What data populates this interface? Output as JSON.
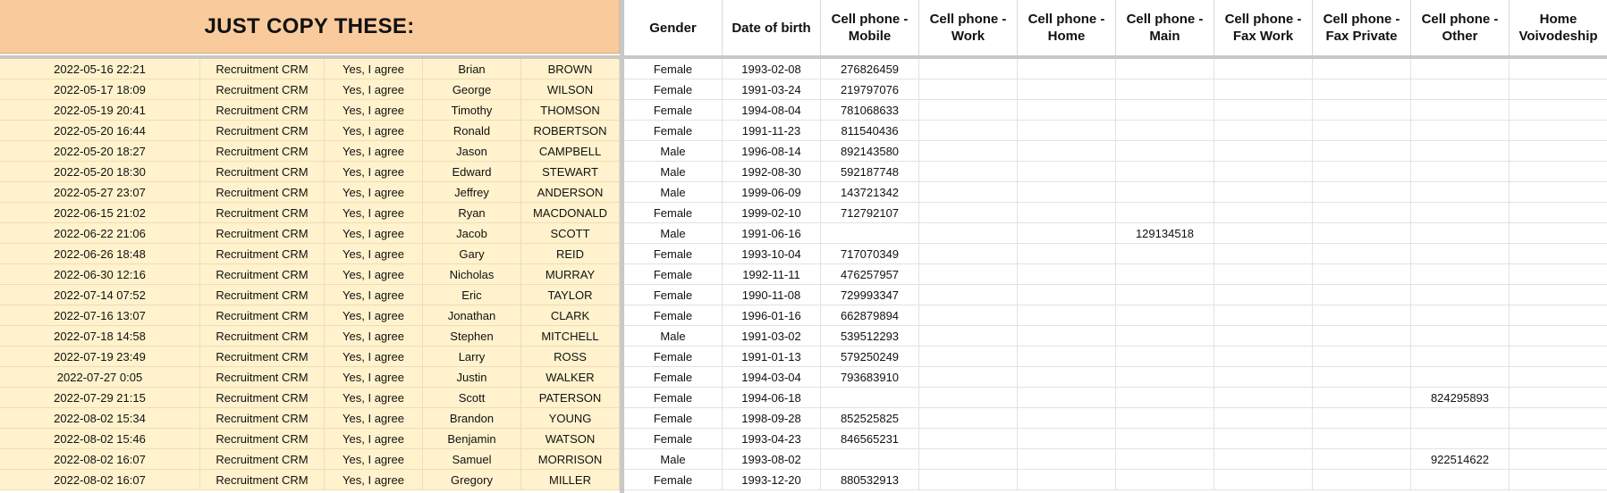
{
  "title": "JUST COPY THESE:",
  "headers": [
    "Gender",
    "Date of birth",
    "Cell phone -\nMobile",
    "Cell phone -\nWork",
    "Cell phone -\nHome",
    "Cell phone -\nMain",
    "Cell phone -\nFax Work",
    "Cell phone -\nFax Private",
    "Cell phone -\nOther",
    "Home\nVoivodeship"
  ],
  "rows": [
    {
      "timestamp": "2022-05-16 22:21",
      "source": "Recruitment CRM",
      "consent": "Yes, I agree",
      "first": "Brian",
      "last": "BROWN",
      "gender": "Female",
      "dob": "1993-02-08",
      "mobile": "276826459",
      "work": "",
      "home": "",
      "main": "",
      "faxwork": "",
      "faxprivate": "",
      "other": "",
      "voivodeship": ""
    },
    {
      "timestamp": "2022-05-17 18:09",
      "source": "Recruitment CRM",
      "consent": "Yes, I agree",
      "first": "George",
      "last": "WILSON",
      "gender": "Female",
      "dob": "1991-03-24",
      "mobile": "219797076",
      "work": "",
      "home": "",
      "main": "",
      "faxwork": "",
      "faxprivate": "",
      "other": "",
      "voivodeship": ""
    },
    {
      "timestamp": "2022-05-19 20:41",
      "source": "Recruitment CRM",
      "consent": "Yes, I agree",
      "first": "Timothy",
      "last": "THOMSON",
      "gender": "Female",
      "dob": "1994-08-04",
      "mobile": "781068633",
      "work": "",
      "home": "",
      "main": "",
      "faxwork": "",
      "faxprivate": "",
      "other": "",
      "voivodeship": ""
    },
    {
      "timestamp": "2022-05-20 16:44",
      "source": "Recruitment CRM",
      "consent": "Yes, I agree",
      "first": "Ronald",
      "last": "ROBERTSON",
      "gender": "Female",
      "dob": "1991-11-23",
      "mobile": "811540436",
      "work": "",
      "home": "",
      "main": "",
      "faxwork": "",
      "faxprivate": "",
      "other": "",
      "voivodeship": ""
    },
    {
      "timestamp": "2022-05-20 18:27",
      "source": "Recruitment CRM",
      "consent": "Yes, I agree",
      "first": "Jason",
      "last": "CAMPBELL",
      "gender": "Male",
      "dob": "1996-08-14",
      "mobile": "892143580",
      "work": "",
      "home": "",
      "main": "",
      "faxwork": "",
      "faxprivate": "",
      "other": "",
      "voivodeship": ""
    },
    {
      "timestamp": "2022-05-20 18:30",
      "source": "Recruitment CRM",
      "consent": "Yes, I agree",
      "first": "Edward",
      "last": "STEWART",
      "gender": "Male",
      "dob": "1992-08-30",
      "mobile": "592187748",
      "work": "",
      "home": "",
      "main": "",
      "faxwork": "",
      "faxprivate": "",
      "other": "",
      "voivodeship": ""
    },
    {
      "timestamp": "2022-05-27 23:07",
      "source": "Recruitment CRM",
      "consent": "Yes, I agree",
      "first": "Jeffrey",
      "last": "ANDERSON",
      "gender": "Male",
      "dob": "1999-06-09",
      "mobile": "143721342",
      "work": "",
      "home": "",
      "main": "",
      "faxwork": "",
      "faxprivate": "",
      "other": "",
      "voivodeship": ""
    },
    {
      "timestamp": "2022-06-15 21:02",
      "source": "Recruitment CRM",
      "consent": "Yes, I agree",
      "first": "Ryan",
      "last": "MACDONALD",
      "gender": "Female",
      "dob": "1999-02-10",
      "mobile": "712792107",
      "work": "",
      "home": "",
      "main": "",
      "faxwork": "",
      "faxprivate": "",
      "other": "",
      "voivodeship": ""
    },
    {
      "timestamp": "2022-06-22 21:06",
      "source": "Recruitment CRM",
      "consent": "Yes, I agree",
      "first": "Jacob",
      "last": "SCOTT",
      "gender": "Male",
      "dob": "1991-06-16",
      "mobile": "",
      "work": "",
      "home": "",
      "main": "129134518",
      "faxwork": "",
      "faxprivate": "",
      "other": "",
      "voivodeship": ""
    },
    {
      "timestamp": "2022-06-26 18:48",
      "source": "Recruitment CRM",
      "consent": "Yes, I agree",
      "first": "Gary",
      "last": "REID",
      "gender": "Female",
      "dob": "1993-10-04",
      "mobile": "717070349",
      "work": "",
      "home": "",
      "main": "",
      "faxwork": "",
      "faxprivate": "",
      "other": "",
      "voivodeship": ""
    },
    {
      "timestamp": "2022-06-30 12:16",
      "source": "Recruitment CRM",
      "consent": "Yes, I agree",
      "first": "Nicholas",
      "last": "MURRAY",
      "gender": "Female",
      "dob": "1992-11-11",
      "mobile": "476257957",
      "work": "",
      "home": "",
      "main": "",
      "faxwork": "",
      "faxprivate": "",
      "other": "",
      "voivodeship": ""
    },
    {
      "timestamp": "2022-07-14 07:52",
      "source": "Recruitment CRM",
      "consent": "Yes, I agree",
      "first": "Eric",
      "last": "TAYLOR",
      "gender": "Female",
      "dob": "1990-11-08",
      "mobile": "729993347",
      "work": "",
      "home": "",
      "main": "",
      "faxwork": "",
      "faxprivate": "",
      "other": "",
      "voivodeship": ""
    },
    {
      "timestamp": "2022-07-16 13:07",
      "source": "Recruitment CRM",
      "consent": "Yes, I agree",
      "first": "Jonathan",
      "last": "CLARK",
      "gender": "Female",
      "dob": "1996-01-16",
      "mobile": "662879894",
      "work": "",
      "home": "",
      "main": "",
      "faxwork": "",
      "faxprivate": "",
      "other": "",
      "voivodeship": ""
    },
    {
      "timestamp": "2022-07-18 14:58",
      "source": "Recruitment CRM",
      "consent": "Yes, I agree",
      "first": "Stephen",
      "last": "MITCHELL",
      "gender": "Male",
      "dob": "1991-03-02",
      "mobile": "539512293",
      "work": "",
      "home": "",
      "main": "",
      "faxwork": "",
      "faxprivate": "",
      "other": "",
      "voivodeship": ""
    },
    {
      "timestamp": "2022-07-19 23:49",
      "source": "Recruitment CRM",
      "consent": "Yes, I agree",
      "first": "Larry",
      "last": "ROSS",
      "gender": "Female",
      "dob": "1991-01-13",
      "mobile": "579250249",
      "work": "",
      "home": "",
      "main": "",
      "faxwork": "",
      "faxprivate": "",
      "other": "",
      "voivodeship": ""
    },
    {
      "timestamp": "2022-07-27 0:05",
      "source": "Recruitment CRM",
      "consent": "Yes, I agree",
      "first": "Justin",
      "last": "WALKER",
      "gender": "Female",
      "dob": "1994-03-04",
      "mobile": "793683910",
      "work": "",
      "home": "",
      "main": "",
      "faxwork": "",
      "faxprivate": "",
      "other": "",
      "voivodeship": ""
    },
    {
      "timestamp": "2022-07-29 21:15",
      "source": "Recruitment CRM",
      "consent": "Yes, I agree",
      "first": "Scott",
      "last": "PATERSON",
      "gender": "Female",
      "dob": "1994-06-18",
      "mobile": "",
      "work": "",
      "home": "",
      "main": "",
      "faxwork": "",
      "faxprivate": "",
      "other": "824295893",
      "voivodeship": ""
    },
    {
      "timestamp": "2022-08-02 15:34",
      "source": "Recruitment CRM",
      "consent": "Yes, I agree",
      "first": "Brandon",
      "last": "YOUNG",
      "gender": "Female",
      "dob": "1998-09-28",
      "mobile": "852525825",
      "work": "",
      "home": "",
      "main": "",
      "faxwork": "",
      "faxprivate": "",
      "other": "",
      "voivodeship": ""
    },
    {
      "timestamp": "2022-08-02 15:46",
      "source": "Recruitment CRM",
      "consent": "Yes, I agree",
      "first": "Benjamin",
      "last": "WATSON",
      "gender": "Female",
      "dob": "1993-04-23",
      "mobile": "846565231",
      "work": "",
      "home": "",
      "main": "",
      "faxwork": "",
      "faxprivate": "",
      "other": "",
      "voivodeship": ""
    },
    {
      "timestamp": "2022-08-02 16:07",
      "source": "Recruitment CRM",
      "consent": "Yes, I agree",
      "first": "Samuel",
      "last": "MORRISON",
      "gender": "Male",
      "dob": "1993-08-02",
      "mobile": "",
      "work": "",
      "home": "",
      "main": "",
      "faxwork": "",
      "faxprivate": "",
      "other": "922514622",
      "voivodeship": ""
    },
    {
      "timestamp": "2022-08-02 16:07",
      "source": "Recruitment CRM",
      "consent": "Yes, I agree",
      "first": "Gregory",
      "last": "MILLER",
      "gender": "Female",
      "dob": "1993-12-20",
      "mobile": "880532913",
      "work": "",
      "home": "",
      "main": "",
      "faxwork": "",
      "faxprivate": "",
      "other": "",
      "voivodeship": ""
    }
  ]
}
